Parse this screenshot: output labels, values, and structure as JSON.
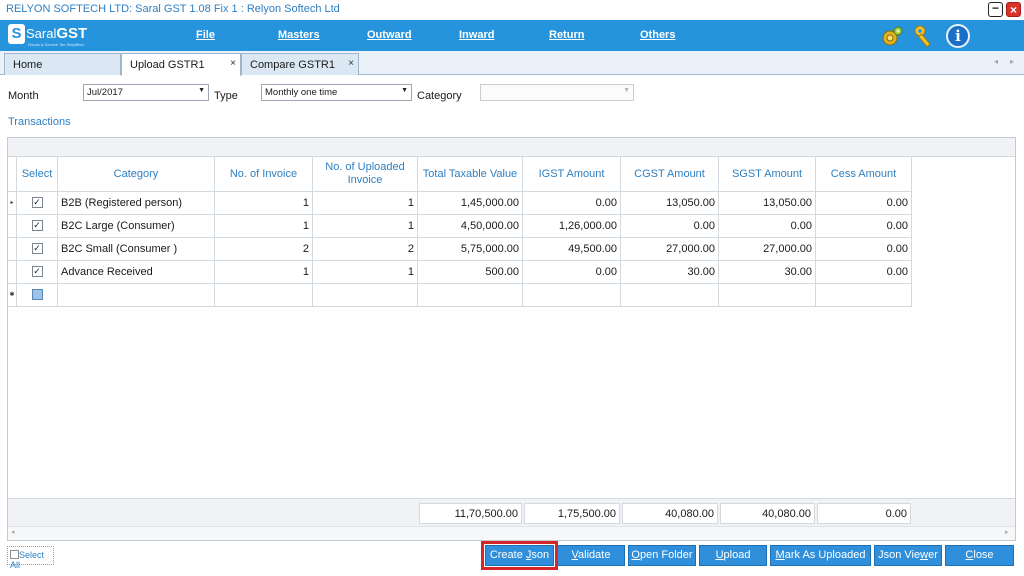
{
  "window": {
    "title": "RELYON SOFTECH LTD: Saral GST  1.08 Fix 1 : Relyon Softech Ltd"
  },
  "logo": {
    "s": "S",
    "brand_a": "Saral",
    "brand_b": "GST",
    "tagline": "Goods & Service Tax Simplified"
  },
  "menu": [
    "File",
    "Masters",
    "Outward",
    "Inward",
    "Return",
    "Others"
  ],
  "icons": {
    "settings": "gear-icon",
    "keys": "key-icon",
    "info": "info-icon",
    "info_glyph": "i"
  },
  "tabs": [
    {
      "label": "Home"
    },
    {
      "label": "Upload GSTR1",
      "close": "×"
    },
    {
      "label": "Compare GSTR1",
      "close": "×"
    }
  ],
  "filters": {
    "month_label": "Month",
    "month_value": "Jul/2017",
    "type_label": "Type",
    "type_value": "Monthly one time",
    "category_label": "Category",
    "category_value": ""
  },
  "section_title": "Transactions",
  "grid": {
    "columns": [
      "Select",
      "Category",
      "No. of Invoice",
      "No. of Uploaded Invoice",
      "Total Taxable Value",
      "IGST Amount",
      "CGST Amount",
      "SGST Amount",
      "Cess Amount"
    ],
    "rows": [
      [
        "B2B (Registered person)",
        "1",
        "1",
        "1,45,000.00",
        "0.00",
        "13,050.00",
        "13,050.00",
        "0.00"
      ],
      [
        "B2C Large (Consumer)",
        "1",
        "1",
        "4,50,000.00",
        "1,26,000.00",
        "0.00",
        "0.00",
        "0.00"
      ],
      [
        "B2C Small (Consumer )",
        "2",
        "2",
        "5,75,000.00",
        "49,500.00",
        "27,000.00",
        "27,000.00",
        "0.00"
      ],
      [
        "Advance Received",
        "1",
        "1",
        "500.00",
        "0.00",
        "30.00",
        "30.00",
        "0.00"
      ]
    ],
    "totals": [
      "11,70,500.00",
      "1,75,500.00",
      "40,080.00",
      "40,080.00",
      "0.00"
    ],
    "row_indicator": "▸",
    "new_row_indicator": "✱",
    "check_mark": "✓"
  },
  "select_all_label": "Select All",
  "buttons": [
    "Create Json",
    "Validate",
    "Open Folder",
    "Upload",
    "Mark As Uploaded",
    "Json Viewer",
    "Close"
  ],
  "colors": {
    "menu_bg": "#2594dd",
    "button_bg": "#2f8fdb",
    "highlight": "#d7262a",
    "header_text": "#2f7fc1"
  }
}
